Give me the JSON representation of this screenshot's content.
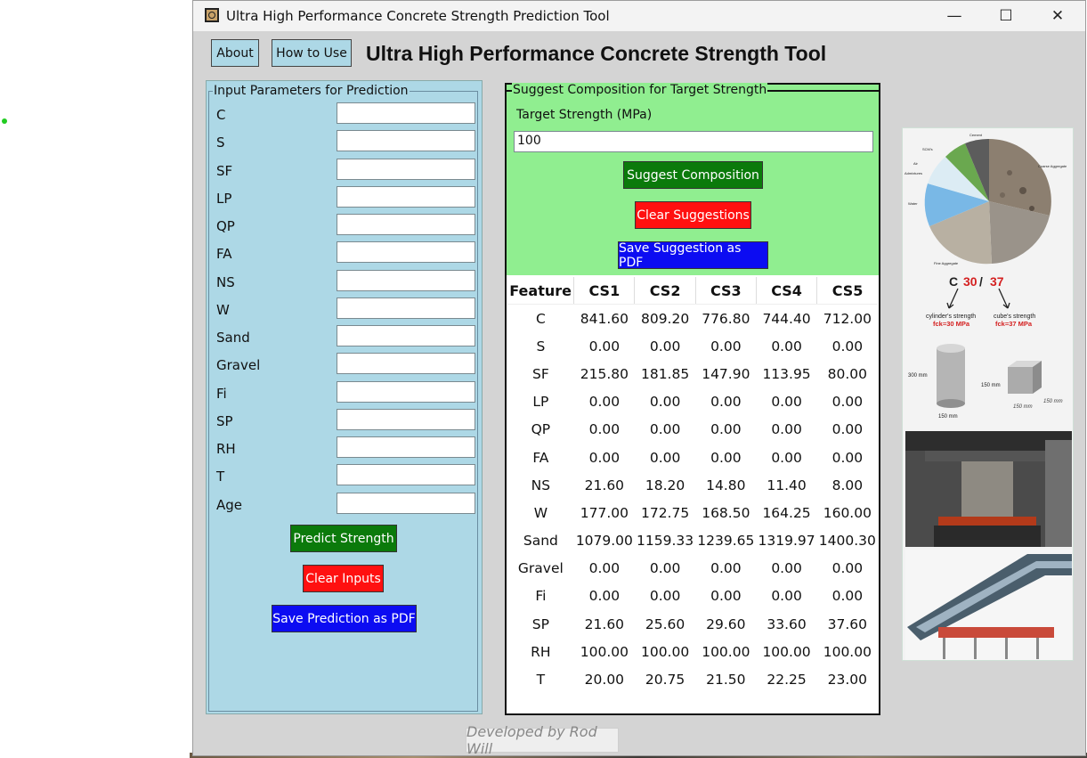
{
  "window": {
    "title": "Ultra High Performance Concrete Strength Prediction Tool",
    "minimize_glyph": "—",
    "maximize_glyph": "☐",
    "close_glyph": "✕"
  },
  "toolbar": {
    "about_label": "About",
    "howto_label": "How to Use",
    "heading": "Ultra High Performance Concrete Strength Tool"
  },
  "input_panel": {
    "title": "Input Parameters for Prediction",
    "fields": [
      {
        "label": "C",
        "value": ""
      },
      {
        "label": "S",
        "value": ""
      },
      {
        "label": "SF",
        "value": ""
      },
      {
        "label": "LP",
        "value": ""
      },
      {
        "label": "QP",
        "value": ""
      },
      {
        "label": "FA",
        "value": ""
      },
      {
        "label": "NS",
        "value": ""
      },
      {
        "label": "W",
        "value": ""
      },
      {
        "label": "Sand",
        "value": ""
      },
      {
        "label": "Gravel",
        "value": ""
      },
      {
        "label": "Fi",
        "value": ""
      },
      {
        "label": "SP",
        "value": ""
      },
      {
        "label": "RH",
        "value": ""
      },
      {
        "label": "T",
        "value": ""
      },
      {
        "label": "Age",
        "value": ""
      }
    ],
    "predict_label": "Predict Strength",
    "clear_label": "Clear Inputs",
    "save_label": "Save Prediction as PDF"
  },
  "suggest_panel": {
    "title": "Suggest Composition for Target Strength",
    "target_label": "Target Strength (MPa)",
    "target_value": "100",
    "suggest_label": "Suggest Composition",
    "clear_label": "Clear Suggestions",
    "save_label": "Save Suggestion as PDF"
  },
  "results_table": {
    "headers": [
      "Feature",
      "CS1",
      "CS2",
      "CS3",
      "CS4",
      "CS5"
    ],
    "rows": [
      [
        "C",
        "841.60",
        "809.20",
        "776.80",
        "744.40",
        "712.00"
      ],
      [
        "S",
        "0.00",
        "0.00",
        "0.00",
        "0.00",
        "0.00"
      ],
      [
        "SF",
        "215.80",
        "181.85",
        "147.90",
        "113.95",
        "80.00"
      ],
      [
        "LP",
        "0.00",
        "0.00",
        "0.00",
        "0.00",
        "0.00"
      ],
      [
        "QP",
        "0.00",
        "0.00",
        "0.00",
        "0.00",
        "0.00"
      ],
      [
        "FA",
        "0.00",
        "0.00",
        "0.00",
        "0.00",
        "0.00"
      ],
      [
        "NS",
        "21.60",
        "18.20",
        "14.80",
        "11.40",
        "8.00"
      ],
      [
        "W",
        "177.00",
        "172.75",
        "168.50",
        "164.25",
        "160.00"
      ],
      [
        "Sand",
        "1079.00",
        "1159.33",
        "1239.65",
        "1319.97",
        "1400.30"
      ],
      [
        "Gravel",
        "0.00",
        "0.00",
        "0.00",
        "0.00",
        "0.00"
      ],
      [
        "Fi",
        "0.00",
        "0.00",
        "0.00",
        "0.00",
        "0.00"
      ],
      [
        "SP",
        "21.60",
        "25.60",
        "29.60",
        "33.60",
        "37.60"
      ],
      [
        "RH",
        "100.00",
        "100.00",
        "100.00",
        "100.00",
        "100.00"
      ],
      [
        "T",
        "20.00",
        "20.75",
        "21.50",
        "22.25",
        "23.00"
      ]
    ]
  },
  "illustration": {
    "pie_labels": [
      "Cement",
      "SCM's",
      "Air",
      "Admixtures",
      "Water",
      "Coarse Aggregate",
      "Fine Aggregate"
    ],
    "grade_prefix": "C",
    "grade_cyl": "30",
    "grade_sep": " / ",
    "grade_cube": "37",
    "cyl_caption": "cylinder's strength",
    "cube_caption": "cube's strength",
    "cyl_value": "fck=30 MPa",
    "cube_value": "fck=37 MPa",
    "dim_300": "300 mm",
    "dim_150": "150 mm",
    "dim_cube_a": "150 mm",
    "dim_cube_b": "150 mm",
    "dim_cube_c": "150 mm",
    "colors": {
      "red": "#d42020",
      "water": "#79b8e6",
      "scm": "#6aa84f",
      "aggregate": "#8c7f70"
    }
  },
  "footer": {
    "text": "Developed by Rod Will"
  }
}
